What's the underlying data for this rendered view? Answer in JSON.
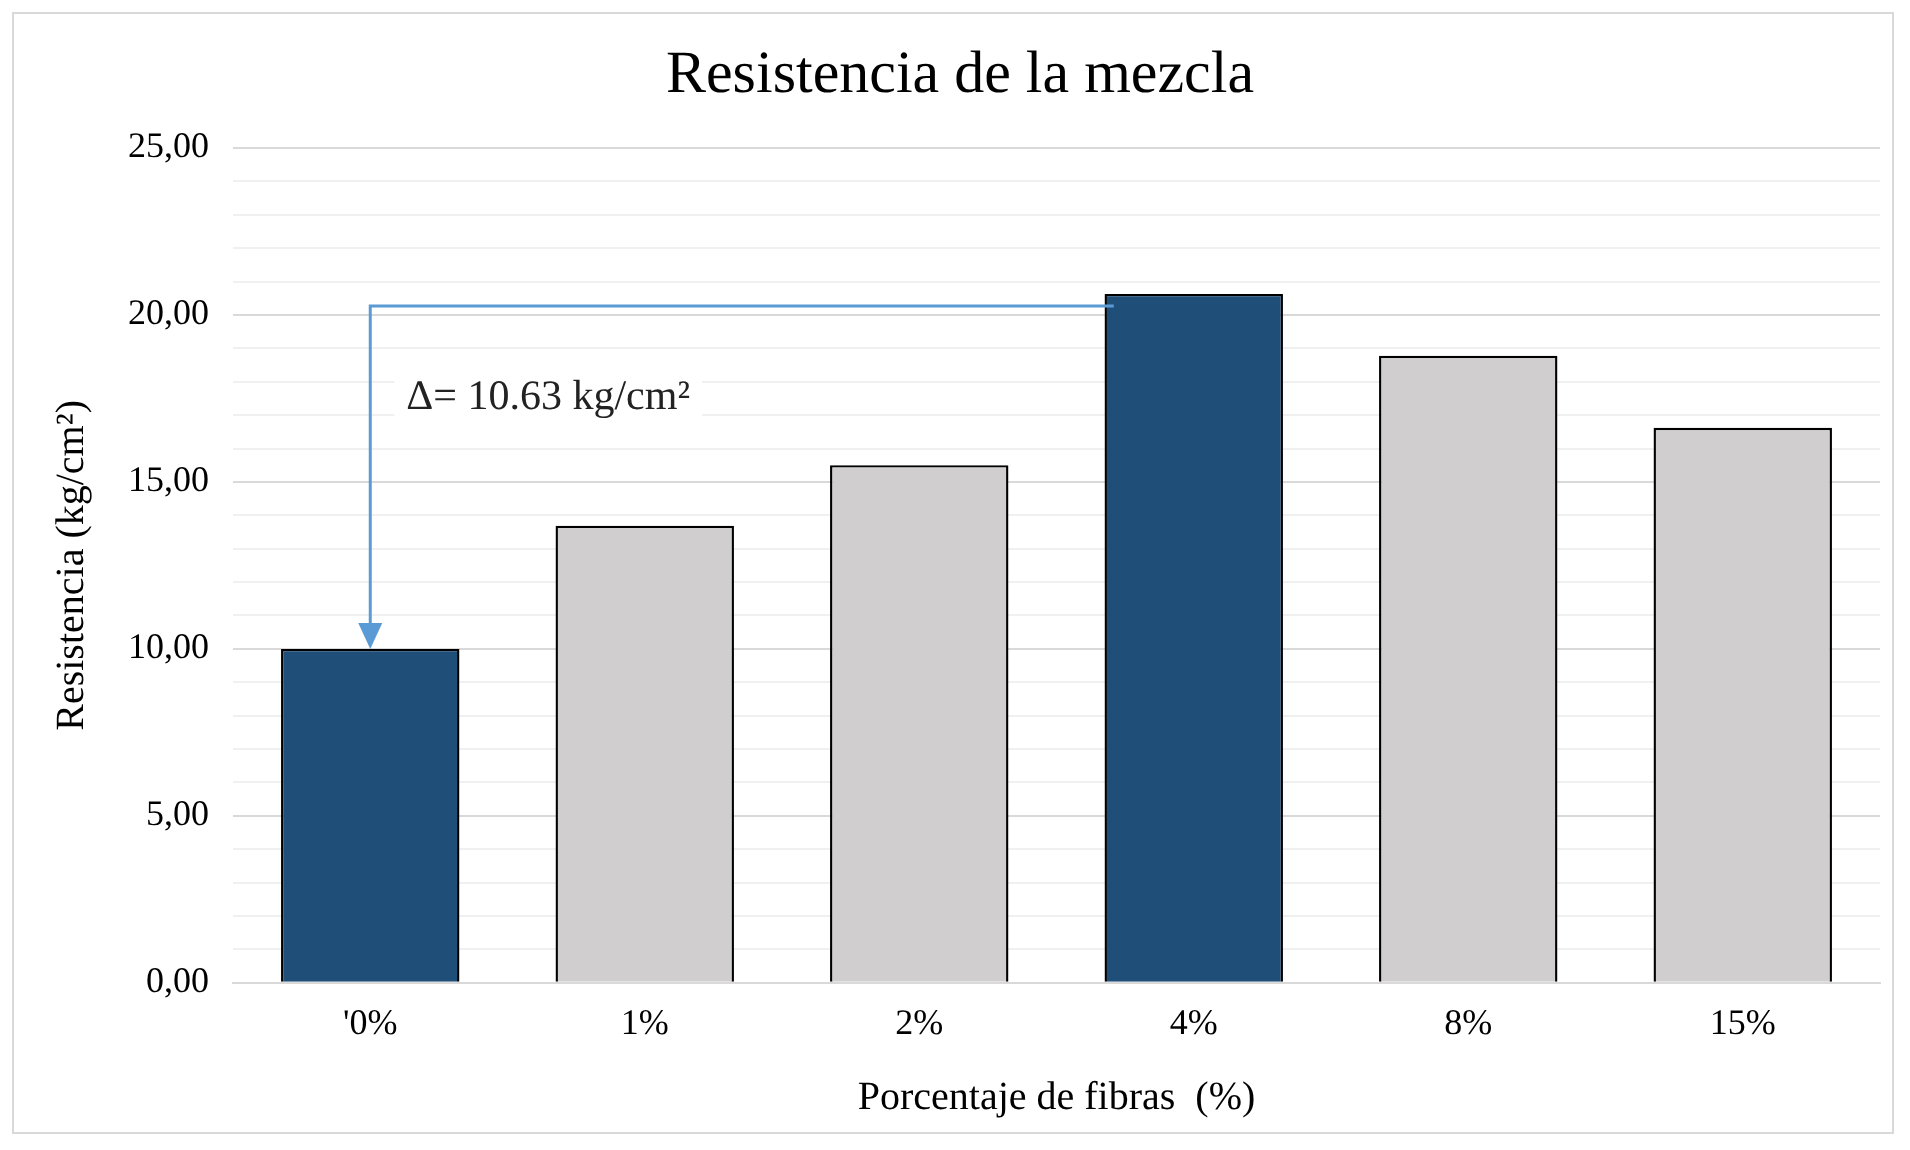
{
  "chart_data": {
    "type": "bar",
    "title": "Resistencia de la mezcla",
    "xlabel": "Porcentaje de fibras  (%)",
    "ylabel": "Resistencia (kg/cm²)",
    "categories": [
      "'0%",
      "1%",
      "2%",
      "4%",
      "8%",
      "15%"
    ],
    "values": [
      10.0,
      13.69,
      15.5,
      20.63,
      18.78,
      16.62
    ],
    "colors": [
      "#1f4e79",
      "#d0cecf",
      "#d0cecf",
      "#1f4e79",
      "#d0cecf",
      "#d0cecf"
    ],
    "ylim": [
      0,
      25
    ],
    "yticks": [
      {
        "value": 0,
        "label": "0,00"
      },
      {
        "value": 1,
        "label": null
      },
      {
        "value": 2,
        "label": null
      },
      {
        "value": 3,
        "label": null
      },
      {
        "value": 4,
        "label": null
      },
      {
        "value": 5,
        "label": "5,00"
      },
      {
        "value": 6,
        "label": null
      },
      {
        "value": 7,
        "label": null
      },
      {
        "value": 8,
        "label": null
      },
      {
        "value": 9,
        "label": null
      },
      {
        "value": 10,
        "label": "10,00"
      },
      {
        "value": 11,
        "label": null
      },
      {
        "value": 12,
        "label": null
      },
      {
        "value": 13,
        "label": null
      },
      {
        "value": 14,
        "label": null
      },
      {
        "value": 15,
        "label": "15,00"
      },
      {
        "value": 16,
        "label": null
      },
      {
        "value": 17,
        "label": null
      },
      {
        "value": 18,
        "label": null
      },
      {
        "value": 19,
        "label": null
      },
      {
        "value": 20,
        "label": "20,00"
      },
      {
        "value": 21,
        "label": null
      },
      {
        "value": 22,
        "label": null
      },
      {
        "value": 23,
        "label": null
      },
      {
        "value": 24,
        "label": null
      },
      {
        "value": 25,
        "label": "25,00"
      }
    ],
    "grid": "y",
    "annotations": [
      "Δ= 10.63 kg/cm²"
    ]
  }
}
